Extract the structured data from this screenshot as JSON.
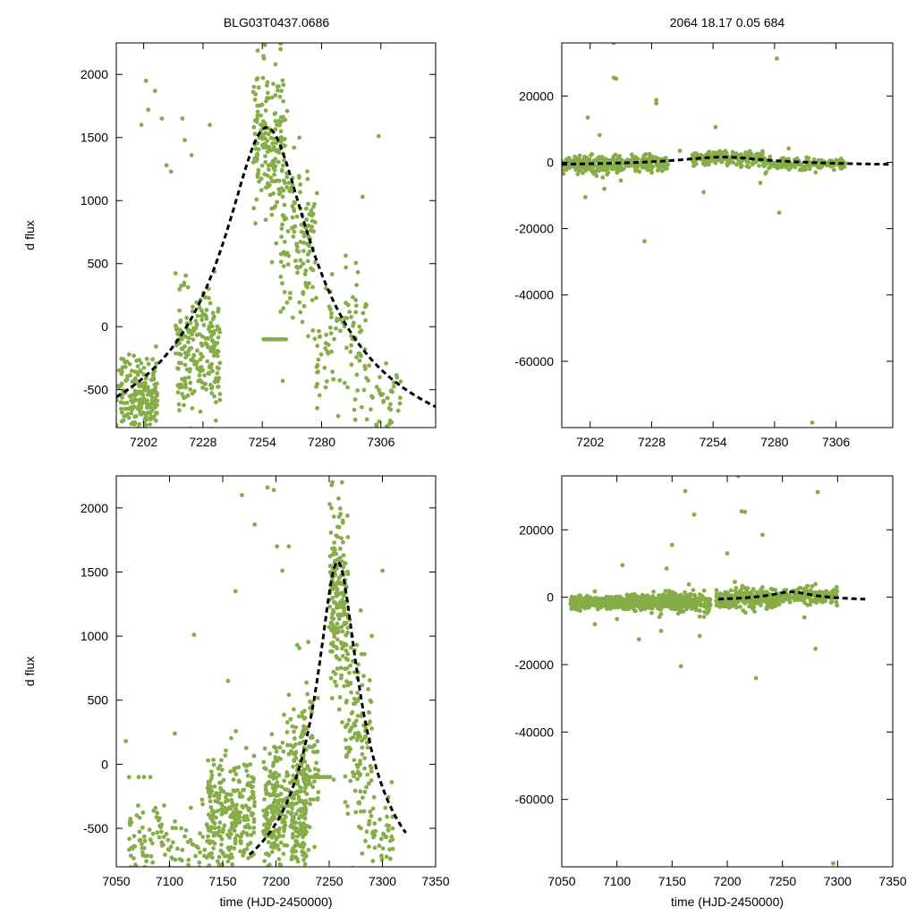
{
  "figure": {
    "left_title": "BLG03T0437.0686",
    "right_title": "2064  18.17  0.05  684",
    "point_color": "#86ad48",
    "model_color": "#000000"
  },
  "chart_data": [
    {
      "id": "zoom-flux",
      "type": "scatter",
      "title": "BLG03T0437.0686",
      "xlabel": "",
      "ylabel": "d flux",
      "xlim": [
        7190,
        7330
      ],
      "ylim": [
        -800,
        2250
      ],
      "xticks": [
        7202,
        7228,
        7254,
        7280,
        7306
      ],
      "yticks": [
        -500,
        0,
        500,
        1000,
        1500,
        2000
      ],
      "model": {
        "t0": 7256,
        "peak": 1580,
        "base": -1320,
        "tau": 18,
        "style": "dashed"
      },
      "clusters": [
        {
          "x": [
            7190,
            7200
          ],
          "ymu": -520,
          "ys": 160,
          "n": 90
        },
        {
          "x": [
            7200,
            7208
          ],
          "ymu": -560,
          "ys": 140,
          "n": 120
        },
        {
          "x": [
            7216,
            7236
          ],
          "ymu": -230,
          "ys": 240,
          "n": 230
        },
        {
          "x": [
            7250,
            7264
          ],
          "ymu": 1450,
          "ys": 330,
          "n": 180
        },
        {
          "x": [
            7262,
            7278
          ],
          "ymu": 700,
          "ys": 320,
          "n": 130
        },
        {
          "x": [
            7276,
            7300
          ],
          "ymu": -150,
          "ys": 280,
          "n": 100
        },
        {
          "x": [
            7300,
            7315
          ],
          "ymu": -560,
          "ys": 170,
          "n": 40
        }
      ],
      "flat": {
        "x": [
          7254,
          7265
        ],
        "y": -100,
        "n": 10
      },
      "outliers": [
        [
          7201,
          1600
        ],
        [
          7203,
          1950
        ],
        [
          7204,
          1720
        ],
        [
          7207,
          1870
        ],
        [
          7210,
          1650
        ],
        [
          7212,
          1280
        ],
        [
          7214,
          1230
        ],
        [
          7219,
          1650
        ],
        [
          7220,
          1480
        ],
        [
          7223,
          1360
        ],
        [
          7231,
          1600
        ],
        [
          7305,
          1510
        ],
        [
          7298,
          1030
        ],
        [
          7263,
          -430
        ],
        [
          7252,
          2190
        ],
        [
          7262,
          2200
        ]
      ]
    },
    {
      "id": "zoom-full",
      "type": "scatter",
      "title": "2064  18.17  0.05  684",
      "xlabel": "",
      "ylabel": "",
      "xlim": [
        7190,
        7330
      ],
      "ylim": [
        -80000,
        36000
      ],
      "xticks": [
        7202,
        7228,
        7254,
        7280,
        7306
      ],
      "yticks": [
        -60000,
        -40000,
        -20000,
        0,
        20000
      ],
      "model": {
        "t0": 7258,
        "peak": 1580,
        "base": -1320,
        "tau": 18,
        "style": "dashed"
      },
      "clusters": [
        {
          "x": [
            7190,
            7210
          ],
          "ymu": -900,
          "ys": 1400,
          "n": 160
        },
        {
          "x": [
            7210,
            7235
          ],
          "ymu": -500,
          "ys": 1300,
          "n": 160
        },
        {
          "x": [
            7245,
            7275
          ],
          "ymu": 1200,
          "ys": 1000,
          "n": 180
        },
        {
          "x": [
            7275,
            7310
          ],
          "ymu": -400,
          "ys": 900,
          "n": 150
        }
      ],
      "outliers": [
        [
          7200,
          -10500
        ],
        [
          7201,
          13500
        ],
        [
          7206,
          8200
        ],
        [
          7208,
          -8000
        ],
        [
          7212,
          36000
        ],
        [
          7212,
          25500
        ],
        [
          7213,
          25200
        ],
        [
          7215,
          -5500
        ],
        [
          7225,
          -23800
        ],
        [
          7230,
          18800
        ],
        [
          7230,
          17800
        ],
        [
          7240,
          3500
        ],
        [
          7255,
          10600
        ],
        [
          7250,
          -9000
        ],
        [
          7274,
          -6200
        ],
        [
          7281,
          31300
        ],
        [
          7282,
          -15200
        ],
        [
          7286,
          4200
        ],
        [
          7296,
          -78500
        ]
      ]
    },
    {
      "id": "full-flux",
      "type": "scatter",
      "title": "",
      "xlabel": "time (HJD-2450000)",
      "ylabel": "d flux",
      "xlim": [
        7050,
        7350
      ],
      "ylim": [
        -800,
        2250
      ],
      "xticks": [
        7050,
        7100,
        7150,
        7200,
        7250,
        7300,
        7350
      ],
      "yticks": [
        -500,
        0,
        500,
        1000,
        1500,
        2000
      ],
      "model": {
        "t0": 7258,
        "peak": 1580,
        "base": -1320,
        "tau": 18,
        "style": "dashed",
        "xmin": 7175,
        "xmax": 7322
      },
      "clusters": [
        {
          "x": [
            7062,
            7095
          ],
          "ymu": -620,
          "ys": 150,
          "n": 60
        },
        {
          "x": [
            7095,
            7135
          ],
          "ymu": -640,
          "ys": 140,
          "n": 50
        },
        {
          "x": [
            7135,
            7180
          ],
          "ymu": -420,
          "ys": 250,
          "n": 280
        },
        {
          "x": [
            7188,
            7230
          ],
          "ymu": -400,
          "ys": 300,
          "n": 330
        },
        {
          "x": [
            7215,
            7240
          ],
          "ymu": 0,
          "ys": 380,
          "n": 120
        },
        {
          "x": [
            7250,
            7268
          ],
          "ymu": 1300,
          "ys": 420,
          "n": 200
        },
        {
          "x": [
            7265,
            7290
          ],
          "ymu": 200,
          "ys": 380,
          "n": 130
        },
        {
          "x": [
            7290,
            7310
          ],
          "ymu": -560,
          "ys": 160,
          "n": 40
        }
      ],
      "flat": {
        "x": [
          7225,
          7252
        ],
        "y": -100,
        "n": 12
      },
      "outliers": [
        [
          7059,
          180
        ],
        [
          7062,
          -100
        ],
        [
          7071,
          -100
        ],
        [
          7076,
          -100
        ],
        [
          7082,
          -100
        ],
        [
          7105,
          240
        ],
        [
          7120,
          -340
        ],
        [
          7123,
          1010
        ],
        [
          7162,
          1350
        ],
        [
          7168,
          2100
        ],
        [
          7180,
          1870
        ],
        [
          7192,
          2160
        ],
        [
          7198,
          2140
        ],
        [
          7201,
          1700
        ],
        [
          7206,
          1510
        ],
        [
          7212,
          1700
        ],
        [
          7220,
          930
        ],
        [
          7253,
          2200
        ],
        [
          7262,
          2200
        ],
        [
          7300,
          1510
        ],
        [
          7155,
          650
        ],
        [
          7170,
          -200
        ]
      ]
    },
    {
      "id": "full-full",
      "type": "scatter",
      "title": "",
      "xlabel": "time (HJD-2450000)",
      "ylabel": "",
      "xlim": [
        7050,
        7350
      ],
      "ylim": [
        -80000,
        36000
      ],
      "xticks": [
        7050,
        7100,
        7150,
        7200,
        7250,
        7300,
        7350
      ],
      "yticks": [
        -60000,
        -40000,
        -20000,
        0,
        20000
      ],
      "model": {
        "t0": 7258,
        "peak": 1580,
        "base": -1320,
        "tau": 18,
        "style": "dashed",
        "xmin": 7192,
        "xmax": 7325
      },
      "clusters": [
        {
          "x": [
            7058,
            7095
          ],
          "ymu": -1500,
          "ys": 900,
          "n": 260
        },
        {
          "x": [
            7095,
            7130
          ],
          "ymu": -1600,
          "ys": 1000,
          "n": 240
        },
        {
          "x": [
            7130,
            7185
          ],
          "ymu": -1500,
          "ys": 1400,
          "n": 330
        },
        {
          "x": [
            7190,
            7245
          ],
          "ymu": -400,
          "ys": 1500,
          "n": 260
        },
        {
          "x": [
            7245,
            7300
          ],
          "ymu": 300,
          "ys": 1200,
          "n": 220
        }
      ],
      "outliers": [
        [
          7062,
          -3500
        ],
        [
          7080,
          -8000
        ],
        [
          7100,
          -6500
        ],
        [
          7105,
          9500
        ],
        [
          7120,
          -12500
        ],
        [
          7140,
          -10000
        ],
        [
          7145,
          8500
        ],
        [
          7150,
          15500
        ],
        [
          7158,
          -20500
        ],
        [
          7162,
          31500
        ],
        [
          7170,
          24500
        ],
        [
          7175,
          -11500
        ],
        [
          7200,
          13000
        ],
        [
          7210,
          36000
        ],
        [
          7213,
          25500
        ],
        [
          7216,
          25300
        ],
        [
          7226,
          -24000
        ],
        [
          7232,
          18500
        ],
        [
          7236,
          -3000
        ],
        [
          7270,
          -6000
        ],
        [
          7280,
          -15300
        ],
        [
          7282,
          31200
        ],
        [
          7296,
          -79000
        ]
      ]
    }
  ]
}
